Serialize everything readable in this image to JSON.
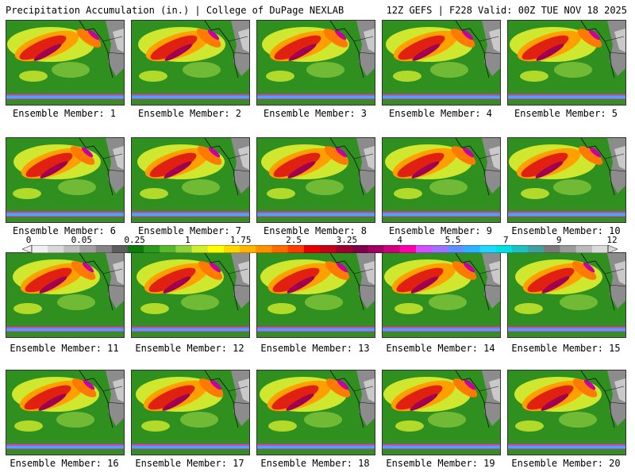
{
  "header": {
    "title": "Precipitation Accumulation (in.) | College of DuPage NEXLAB",
    "run_info": "12Z GEFS | F228 Valid: 00Z TUE NOV 18 2025"
  },
  "members": [
    {
      "label": "Ensemble Member: 1"
    },
    {
      "label": "Ensemble Member: 2"
    },
    {
      "label": "Ensemble Member: 3"
    },
    {
      "label": "Ensemble Member: 4"
    },
    {
      "label": "Ensemble Member: 5"
    },
    {
      "label": "Ensemble Member: 6"
    },
    {
      "label": "Ensemble Member: 7"
    },
    {
      "label": "Ensemble Member: 8"
    },
    {
      "label": "Ensemble Member: 9"
    },
    {
      "label": "Ensemble Member: 10"
    },
    {
      "label": "Ensemble Member: 11"
    },
    {
      "label": "Ensemble Member: 12"
    },
    {
      "label": "Ensemble Member: 13"
    },
    {
      "label": "Ensemble Member: 14"
    },
    {
      "label": "Ensemble Member: 15"
    },
    {
      "label": "Ensemble Member: 16"
    },
    {
      "label": "Ensemble Member: 17"
    },
    {
      "label": "Ensemble Member: 18"
    },
    {
      "label": "Ensemble Member: 19"
    },
    {
      "label": "Ensemble Member: 20"
    }
  ],
  "colorbar": {
    "ticks": [
      "0",
      "0.05",
      "0.25",
      "1",
      "1.75",
      "2.5",
      "3.25",
      "4",
      "5.5",
      "7",
      "9",
      "12"
    ],
    "colors": [
      "#f0f0f0",
      "#d8d8d8",
      "#bdbdbd",
      "#a0a0a0",
      "#838383",
      "#5c5c5c",
      "#0e7a0e",
      "#2c9a1e",
      "#58b82c",
      "#90d23a",
      "#d2ec2e",
      "#ffff00",
      "#ffd800",
      "#ffb400",
      "#ff9000",
      "#ff6a00",
      "#ff3c00",
      "#e80000",
      "#c80018",
      "#a00030",
      "#800048",
      "#a0005e",
      "#d0007c",
      "#ff00a8",
      "#d050ff",
      "#a070ff",
      "#6090ff",
      "#30b0ff",
      "#20d8ff",
      "#00e0e0",
      "#20c0c0",
      "#40a0a0",
      "#7a7a7a",
      "#9a9a9a",
      "#bababa",
      "#dadada"
    ]
  }
}
